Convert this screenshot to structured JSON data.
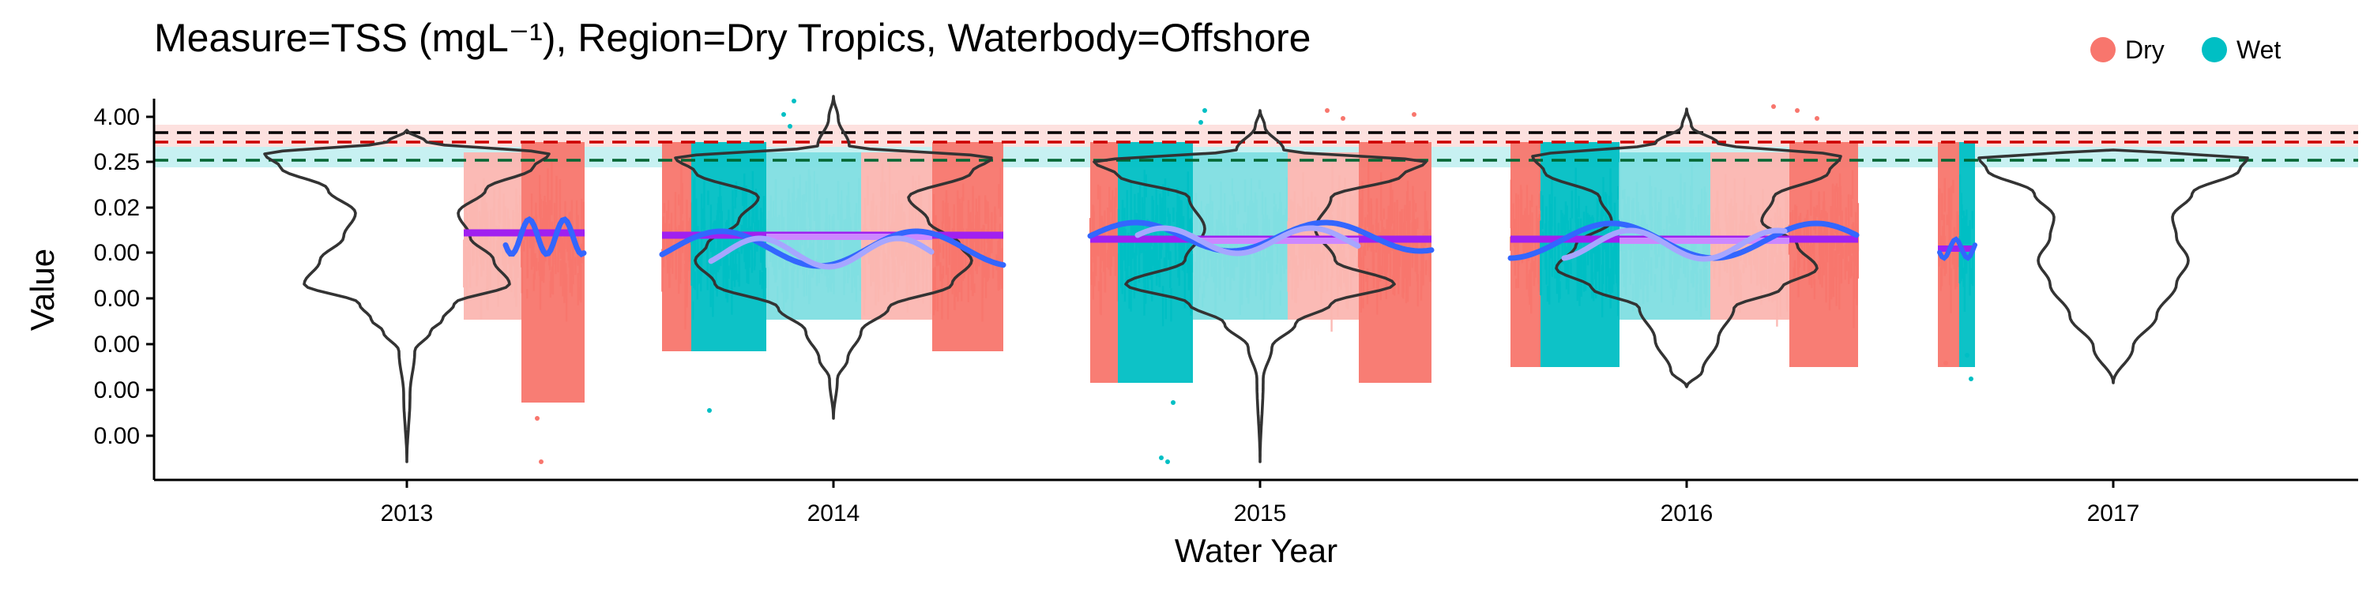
{
  "chart_data": {
    "type": "violin",
    "title": "Measure=TSS (mgL⁻¹), Region=Dry Tropics, Waterbody=Offshore",
    "xlabel": "Water Year",
    "ylabel": "Value",
    "x_categories": [
      "2013",
      "2014",
      "2015",
      "2016",
      "2017"
    ],
    "y_tick_labels": [
      "4.00",
      "0.25",
      "0.02",
      "0.00",
      "0.00",
      "0.00",
      "0.00",
      "0.00"
    ],
    "y_scale": "log",
    "legend": {
      "placement": "top-right",
      "entries": [
        {
          "name": "Dry",
          "color": "#F8766D"
        },
        {
          "name": "Wet",
          "color": "#00BFC4"
        }
      ]
    },
    "reference_lines": [
      {
        "color": "#000000",
        "style": "dashed"
      },
      {
        "color": "#CC0000",
        "style": "dashed"
      },
      {
        "color": "#006633",
        "style": "dashed"
      }
    ],
    "reference_bands": [
      {
        "color": "#F8766D"
      },
      {
        "color": "#00BFC4"
      }
    ],
    "colors": {
      "dry": "#F8766D",
      "wet": "#00BFC4",
      "dry_light": "#FBB6B1",
      "wet_light": "#80DEE1",
      "trend": "#3366FF",
      "trend_light": "#A6A6FF",
      "mean": "#A020F0",
      "mean_light": "#CC88FF"
    }
  }
}
